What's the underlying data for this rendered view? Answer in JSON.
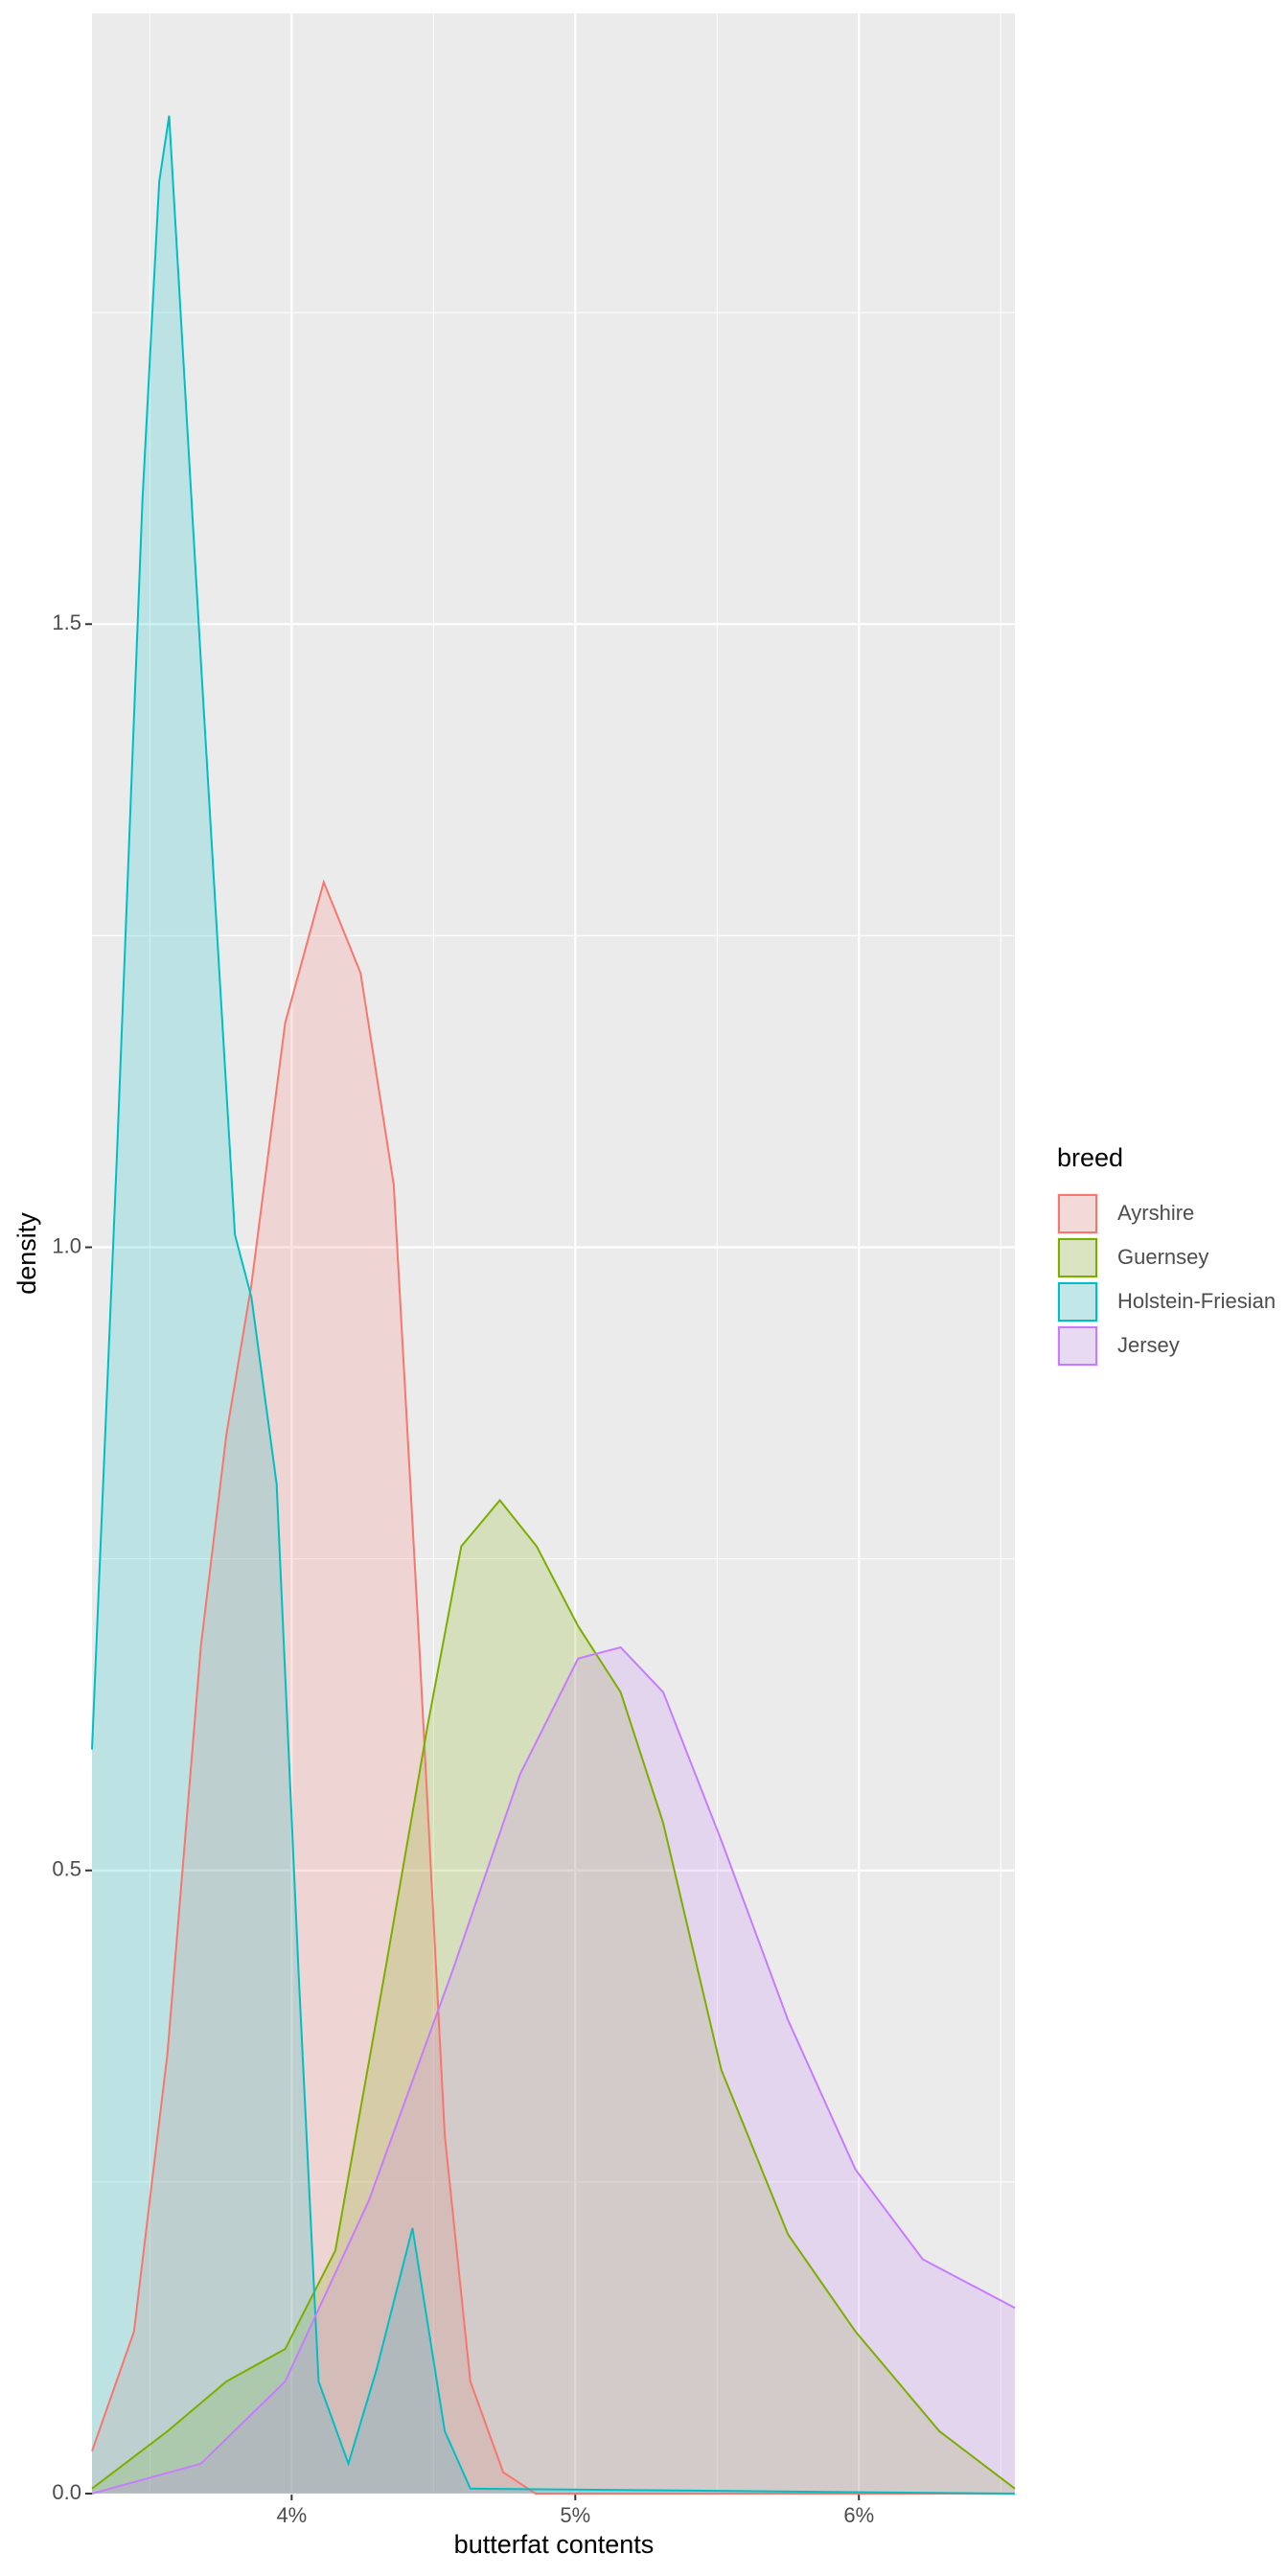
{
  "chart_data": {
    "type": "density",
    "x_label": "butterfat contents",
    "y_label": "density",
    "legend_title": "breed",
    "legend": "right",
    "xlim": [
      3.296,
      6.55
    ],
    "ylim": [
      0,
      1.99
    ],
    "xticks": [
      {
        "value": 4,
        "label": "4%"
      },
      {
        "value": 5,
        "label": "5%"
      },
      {
        "value": 6,
        "label": "6%"
      }
    ],
    "xminor": [
      3.5,
      4.5,
      5.5,
      6.5
    ],
    "yticks": [
      {
        "value": 0,
        "label": "0.0"
      },
      0.5,
      {
        "value": 1,
        "label": "1.0"
      },
      1.5
    ],
    "yminor": [
      0.25,
      0.75,
      1.25,
      1.75
    ],
    "grid": true,
    "series": [
      {
        "name": "Ayrshire",
        "color": "#F8766D",
        "x": [
          3.296,
          3.444,
          3.562,
          3.68,
          3.77,
          3.858,
          3.977,
          4.113,
          4.243,
          4.36,
          4.45,
          4.54,
          4.63,
          4.746,
          4.86,
          6.55
        ],
        "values": [
          0.034,
          0.13,
          0.353,
          0.68,
          0.85,
          0.97,
          1.18,
          1.293,
          1.22,
          1.05,
          0.68,
          0.287,
          0.09,
          0.017,
          0,
          0
        ]
      },
      {
        "name": "Guernsey",
        "color": "#7CAE00",
        "x": [
          3.296,
          3.562,
          3.77,
          3.977,
          4.154,
          4.33,
          4.48,
          4.598,
          4.734,
          4.864,
          5.01,
          5.16,
          5.31,
          5.515,
          5.75,
          5.988,
          6.284,
          6.55
        ],
        "values": [
          0.004,
          0.05,
          0.09,
          0.116,
          0.195,
          0.42,
          0.617,
          0.76,
          0.797,
          0.76,
          0.696,
          0.643,
          0.538,
          0.34,
          0.208,
          0.13,
          0.05,
          0.004
        ]
      },
      {
        "name": "Holstein-Friesian",
        "color": "#00BFC4",
        "x": [
          3.296,
          3.385,
          3.474,
          3.533,
          3.568,
          3.68,
          3.8,
          3.858,
          3.947,
          4.024,
          4.095,
          4.2,
          4.3,
          4.426,
          4.54,
          4.63,
          6.55
        ],
        "values": [
          0.597,
          1.08,
          1.6,
          1.855,
          1.908,
          1.47,
          1.01,
          0.96,
          0.81,
          0.42,
          0.09,
          0.024,
          0.1,
          0.213,
          0.05,
          0.004,
          0
        ]
      },
      {
        "name": "Jersey",
        "color": "#C77CFF",
        "x": [
          3.296,
          3.68,
          3.977,
          4.272,
          4.568,
          4.805,
          5.01,
          5.16,
          5.31,
          5.515,
          5.75,
          5.988,
          6.225,
          6.55
        ],
        "values": [
          0,
          0.024,
          0.09,
          0.235,
          0.42,
          0.577,
          0.67,
          0.679,
          0.643,
          0.524,
          0.38,
          0.26,
          0.188,
          0.149
        ]
      }
    ]
  }
}
